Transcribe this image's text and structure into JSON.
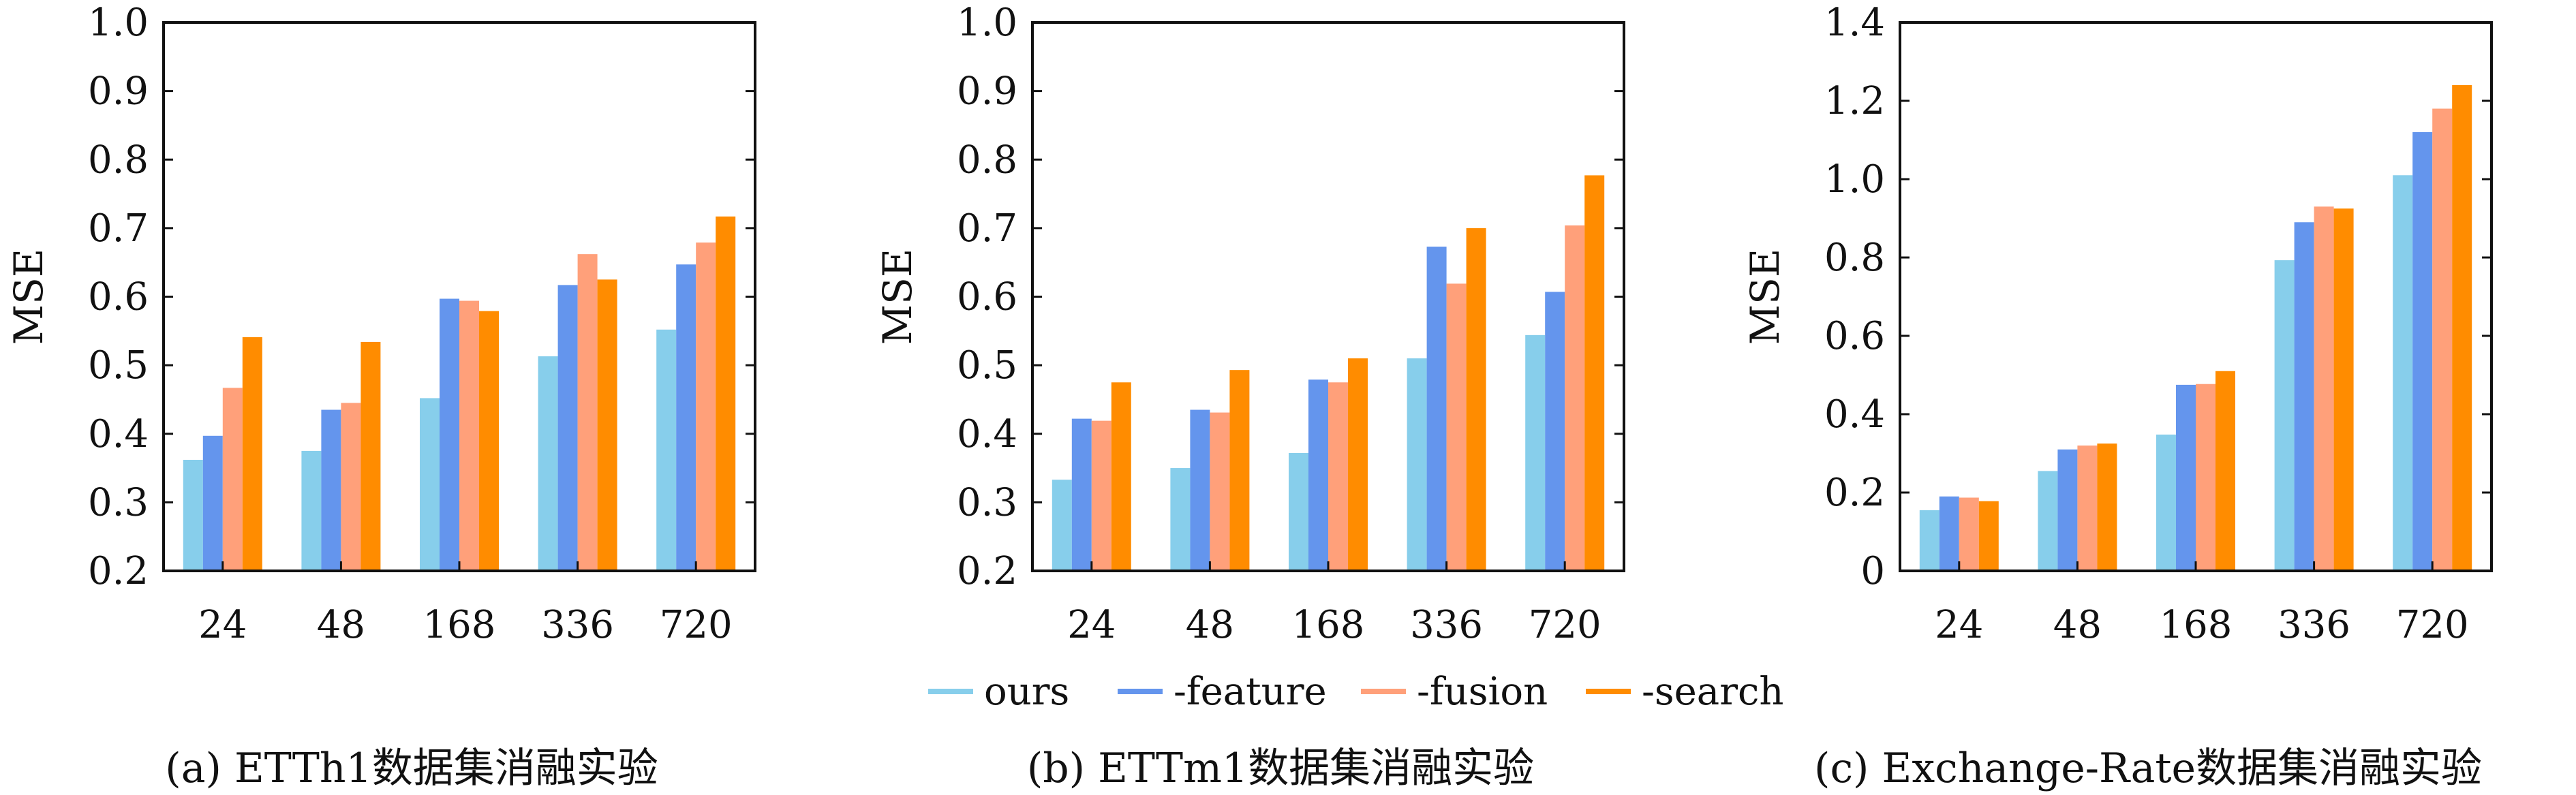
{
  "legend": {
    "items": [
      {
        "name": "ours",
        "color": "#87ceeb"
      },
      {
        "name": "-feature",
        "color": "#6495ed"
      },
      {
        "name": "-fusion",
        "color": "#ffa07a"
      },
      {
        "name": "-search",
        "color": "#ff8c00"
      }
    ]
  },
  "chart_data": [
    {
      "type": "bar",
      "caption": "(a) ETTh1数据集消融实验",
      "ylabel": "MSE",
      "ylim": [
        0.2,
        1.0
      ],
      "yticks": [
        0.2,
        0.3,
        0.4,
        0.5,
        0.6,
        0.7,
        0.8,
        0.9,
        1.0
      ],
      "ytick_labels": [
        "0.2",
        "0.3",
        "0.4",
        "0.5",
        "0.6",
        "0.7",
        "0.8",
        "0.9",
        "1.0"
      ],
      "categories": [
        "24",
        "48",
        "168",
        "336",
        "720"
      ],
      "series": [
        {
          "name": "ours",
          "color": "#87ceeb",
          "values": [
            0.362,
            0.375,
            0.452,
            0.513,
            0.552
          ]
        },
        {
          "name": "-feature",
          "color": "#6495ed",
          "values": [
            0.397,
            0.435,
            0.597,
            0.617,
            0.647
          ]
        },
        {
          "name": "-fusion",
          "color": "#ffa07a",
          "values": [
            0.467,
            0.445,
            0.594,
            0.662,
            0.679
          ]
        },
        {
          "name": "-search",
          "color": "#ff8c00",
          "values": [
            0.541,
            0.534,
            0.579,
            0.625,
            0.717
          ]
        }
      ],
      "grid": false
    },
    {
      "type": "bar",
      "caption": "(b) ETTm1数据集消融实验",
      "ylabel": "MSE",
      "ylim": [
        0.2,
        1.0
      ],
      "yticks": [
        0.2,
        0.3,
        0.4,
        0.5,
        0.6,
        0.7,
        0.8,
        0.9,
        1.0
      ],
      "ytick_labels": [
        "0.2",
        "0.3",
        "0.4",
        "0.5",
        "0.6",
        "0.7",
        "0.8",
        "0.9",
        "1.0"
      ],
      "categories": [
        "24",
        "48",
        "168",
        "336",
        "720"
      ],
      "series": [
        {
          "name": "ours",
          "color": "#87ceeb",
          "values": [
            0.333,
            0.35,
            0.372,
            0.51,
            0.544
          ]
        },
        {
          "name": "-feature",
          "color": "#6495ed",
          "values": [
            0.422,
            0.435,
            0.479,
            0.673,
            0.607
          ]
        },
        {
          "name": "-fusion",
          "color": "#ffa07a",
          "values": [
            0.419,
            0.431,
            0.475,
            0.619,
            0.704
          ]
        },
        {
          "name": "-search",
          "color": "#ff8c00",
          "values": [
            0.475,
            0.493,
            0.51,
            0.7,
            0.777
          ]
        }
      ],
      "grid": false
    },
    {
      "type": "bar",
      "caption": "(c) Exchange-Rate数据集消融实验",
      "ylabel": "MSE",
      "ylim": [
        0,
        1.4
      ],
      "yticks": [
        0,
        0.2,
        0.4,
        0.6,
        0.8,
        1.0,
        1.2,
        1.4
      ],
      "ytick_labels": [
        "0",
        "0.2",
        "0.4",
        "0.6",
        "0.8",
        "1.0",
        "1.2",
        "1.4"
      ],
      "categories": [
        "24",
        "48",
        "168",
        "336",
        "720"
      ],
      "series": [
        {
          "name": "ours",
          "color": "#87ceeb",
          "values": [
            0.155,
            0.255,
            0.348,
            0.793,
            1.01
          ]
        },
        {
          "name": "-feature",
          "color": "#6495ed",
          "values": [
            0.19,
            0.31,
            0.475,
            0.89,
            1.12
          ]
        },
        {
          "name": "-fusion",
          "color": "#ffa07a",
          "values": [
            0.187,
            0.32,
            0.477,
            0.93,
            1.18
          ]
        },
        {
          "name": "-search",
          "color": "#ff8c00",
          "values": [
            0.178,
            0.325,
            0.51,
            0.925,
            1.24
          ]
        }
      ],
      "grid": false
    }
  ]
}
